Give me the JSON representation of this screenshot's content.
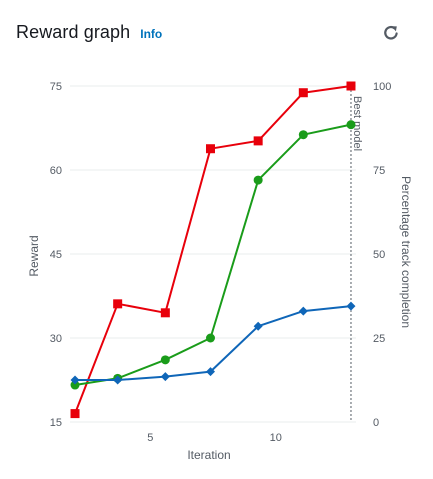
{
  "header": {
    "title": "Reward graph",
    "info_label": "Info"
  },
  "icons": {
    "refresh": "refresh-icon"
  },
  "chart_data": {
    "type": "line",
    "xlabel": "Iteration",
    "ylabel": "Reward",
    "y2label": "Percentage track completion",
    "xlim": [
      1.8,
      13.2
    ],
    "ylim": [
      15,
      75
    ],
    "y2lim": [
      0,
      100
    ],
    "xticks": [
      5,
      10
    ],
    "yticks": [
      15,
      30,
      45,
      60,
      75
    ],
    "y2ticks": [
      0,
      25,
      50,
      75,
      100
    ],
    "grid": "horizontal",
    "annotation": {
      "label": "Best model",
      "x": 13
    },
    "series": [
      {
        "axis": "left",
        "marker": "square",
        "color": "#e8000b",
        "x": [
          2,
          3.7,
          5.6,
          7.4,
          9.3,
          11.1,
          13
        ],
        "values": [
          16.5,
          36.1,
          34.5,
          63.8,
          65.2,
          73.8,
          75
        ]
      },
      {
        "axis": "right",
        "marker": "circle",
        "color": "#1a9c1a",
        "x": [
          2,
          3.7,
          5.6,
          7.4,
          9.3,
          11.1,
          13
        ],
        "values": [
          11,
          13,
          18.5,
          25,
          72,
          85.5,
          88.5
        ]
      },
      {
        "axis": "right",
        "marker": "diamond",
        "color": "#0f66b8",
        "x": [
          2,
          3.7,
          5.6,
          7.4,
          9.3,
          11.1,
          13
        ],
        "values": [
          12.5,
          12.5,
          13.5,
          15,
          28.5,
          33,
          34.5
        ]
      }
    ]
  }
}
